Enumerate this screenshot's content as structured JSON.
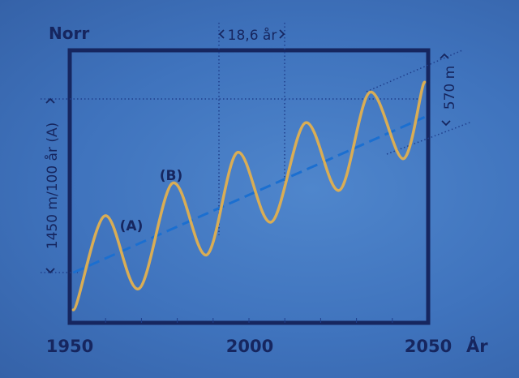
{
  "chart_data": {
    "type": "line",
    "title": "Norr",
    "xlabel": "År",
    "x_ticks": [
      "1950",
      "2000",
      "2050"
    ],
    "xlim": [
      1950,
      2050
    ],
    "ylabel": "1450 m/100 år (A)",
    "series": [
      {
        "kind": "oscillating",
        "x": [
          1951,
          1960,
          1969,
          1979,
          1988,
          1997,
          2006,
          2016,
          2025,
          2034,
          2043,
          2049
        ],
        "y": [
          0,
          430,
          95,
          580,
          250,
          720,
          400,
          855,
          545,
          995,
          690,
          1040
        ]
      },
      {
        "kind": "trend-dashed",
        "x": [
          1951,
          2049
        ],
        "y": [
          170,
          880
        ]
      }
    ],
    "annotations": {
      "A": "(A)",
      "B": "(B)",
      "period": "18,6 år",
      "amplitude": "570 m"
    }
  },
  "colors": {
    "background": "#4277c2",
    "frame": "#16265f",
    "curve": "#d9ad55",
    "trend": "#1b6fd0",
    "guide": "#1f3f8c"
  }
}
